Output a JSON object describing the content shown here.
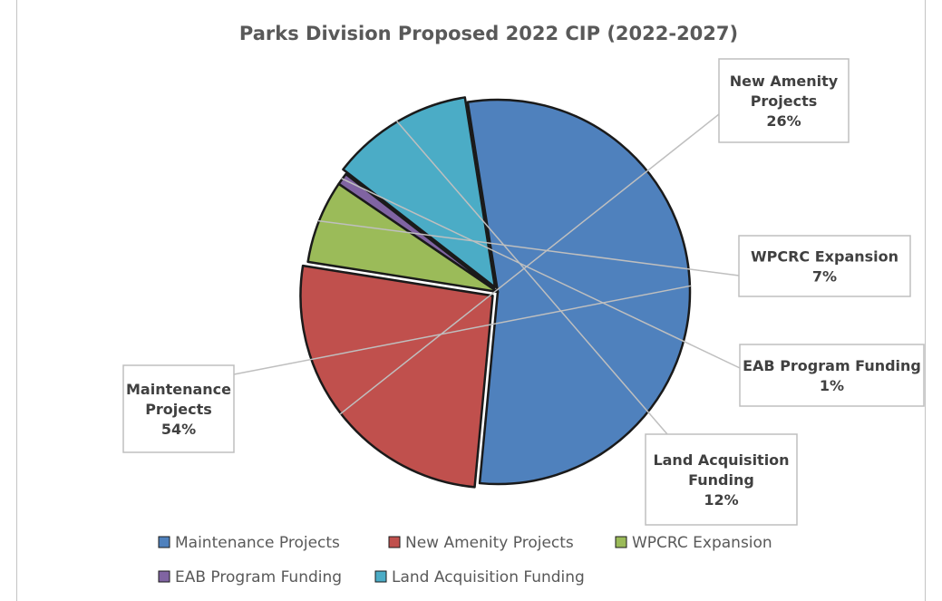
{
  "chart_data": {
    "type": "pie",
    "title": "Parks Division Proposed 2022 CIP (2022-2027)",
    "legend_position": "bottom",
    "slices": [
      {
        "name": "Maintenance Projects",
        "label_lines": [
          "Maintenance",
          "Projects"
        ],
        "percent_label": "54%",
        "value": 54,
        "color": "#4f81bd"
      },
      {
        "name": "New Amenity Projects",
        "label_lines": [
          "New Amenity",
          "Projects"
        ],
        "percent_label": "26%",
        "value": 26,
        "color": "#c0504d"
      },
      {
        "name": "WPCRC Expansion",
        "label_lines": [
          "WPCRC Expansion"
        ],
        "percent_label": "7%",
        "value": 7,
        "color": "#9bbb59"
      },
      {
        "name": "EAB Program Funding",
        "label_lines": [
          "EAB Program Funding"
        ],
        "percent_label": "1%",
        "value": 1,
        "color": "#8064a2"
      },
      {
        "name": "Land Acquisition Funding",
        "label_lines": [
          "Land Acquisition",
          "Funding"
        ],
        "percent_label": "12%",
        "value": 12,
        "color": "#4bacc6"
      }
    ]
  }
}
